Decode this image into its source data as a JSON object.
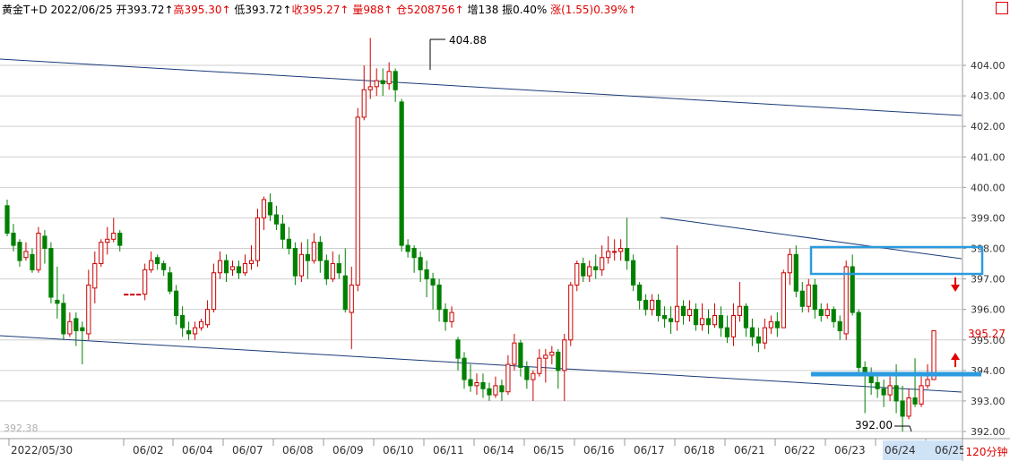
{
  "header": {
    "symbol": "黄金T+D",
    "date": "2022/06/25",
    "open": "开393.72↑",
    "high": "高395.30↑",
    "low": "低393.72↑",
    "close": "收395.27↑",
    "volume": "量988↑",
    "position": "仓5208756↑",
    "increase": "增138",
    "amplitude": "振0.40%",
    "change": "涨(1.55)0.39%↑"
  },
  "period_label": "120分钟",
  "colors": {
    "up": "#cc0000",
    "down": "#008000",
    "line": "#1a3a7a",
    "box": "#2b9be0",
    "axis_text": "#333333"
  },
  "chart_data": {
    "type": "candlestick",
    "ylim": [
      391.8,
      404.9
    ],
    "y_ticks": [
      "404.00",
      "403.00",
      "402.00",
      "401.00",
      "400.00",
      "399.00",
      "398.00",
      "397.00",
      "396.00",
      "395.00",
      "394.00",
      "393.00",
      "392.00"
    ],
    "y_tick_values": [
      404,
      403,
      402,
      401,
      400,
      399,
      398,
      397,
      396,
      395,
      394,
      393,
      392
    ],
    "x_labels": [
      "2022/05/30",
      "06/02",
      "06/04",
      "06/07",
      "06/08",
      "06/09",
      "06/10",
      "06/11",
      "06/14",
      "06/15",
      "06/16",
      "06/17",
      "06/18",
      "06/21",
      "06/22",
      "06/23",
      "06/24",
      "06/25"
    ],
    "annotations": {
      "max_label": "404.88",
      "min_label": "392.00",
      "current_price": "395.27",
      "faint_label": "392.38"
    },
    "candles": [
      [
        399.4,
        398.5,
        399.6,
        398.4
      ],
      [
        398.5,
        398.1,
        398.8,
        397.9
      ],
      [
        398.2,
        397.6,
        398.3,
        397.4
      ],
      [
        397.7,
        397.9,
        398.2,
        397.6
      ],
      [
        397.8,
        397.3,
        398.0,
        397.2
      ],
      [
        397.3,
        398.5,
        398.7,
        397.2
      ],
      [
        398.4,
        398.0,
        398.6,
        397.5
      ],
      [
        398.0,
        396.4,
        398.2,
        396.2
      ],
      [
        396.3,
        396.2,
        397.4,
        395.7
      ],
      [
        396.2,
        395.2,
        396.5,
        395.0
      ],
      [
        395.2,
        395.6,
        395.9,
        395.1
      ],
      [
        395.7,
        395.3,
        395.9,
        394.8
      ],
      [
        395.4,
        395.3,
        395.6,
        394.2
      ],
      [
        395.2,
        396.8,
        397.3,
        395.0
      ],
      [
        396.7,
        397.5,
        397.9,
        396.2
      ],
      [
        397.5,
        398.2,
        398.3,
        397.4
      ],
      [
        398.2,
        398.3,
        398.7,
        397.8
      ],
      [
        398.3,
        398.5,
        399.0,
        398.2
      ],
      [
        398.5,
        398.1,
        398.6,
        397.9
      ],
      [
        396.5,
        396.5,
        396.5,
        396.5
      ],
      [
        396.5,
        396.5,
        396.5,
        396.5
      ],
      [
        396.5,
        396.5,
        396.5,
        396.5
      ],
      [
        396.5,
        397.3,
        397.5,
        396.3
      ],
      [
        397.3,
        397.6,
        397.9,
        397.2
      ],
      [
        397.7,
        397.5,
        397.8,
        397.3
      ],
      [
        397.5,
        397.3,
        397.6,
        397.1
      ],
      [
        397.2,
        396.6,
        397.4,
        396.5
      ],
      [
        396.6,
        395.8,
        396.8,
        395.5
      ],
      [
        395.8,
        395.4,
        396.1,
        395.1
      ],
      [
        395.3,
        395.2,
        395.6,
        395.0
      ],
      [
        395.2,
        395.4,
        395.6,
        395.0
      ],
      [
        395.4,
        395.6,
        395.7,
        395.3
      ],
      [
        395.5,
        396.0,
        396.3,
        395.4
      ],
      [
        396.0,
        397.2,
        397.5,
        395.9
      ],
      [
        397.2,
        397.6,
        397.9,
        397.0
      ],
      [
        397.6,
        397.2,
        397.8,
        396.9
      ],
      [
        397.3,
        397.4,
        397.6,
        397.1
      ],
      [
        397.4,
        397.2,
        397.6,
        397.0
      ],
      [
        397.2,
        397.5,
        397.8,
        397.1
      ],
      [
        397.5,
        397.6,
        398.1,
        397.3
      ],
      [
        397.6,
        399.0,
        399.3,
        397.4
      ],
      [
        399.0,
        399.6,
        399.7,
        398.6
      ],
      [
        399.5,
        399.1,
        399.8,
        398.9
      ],
      [
        399.1,
        398.8,
        399.4,
        398.6
      ],
      [
        398.8,
        398.3,
        399.1,
        398.0
      ],
      [
        398.3,
        398.0,
        398.7,
        397.8
      ],
      [
        398.0,
        397.1,
        398.2,
        396.8
      ],
      [
        397.1,
        397.8,
        398.2,
        396.9
      ],
      [
        397.8,
        397.6,
        398.3,
        397.0
      ],
      [
        397.6,
        398.2,
        398.5,
        397.5
      ],
      [
        398.2,
        397.6,
        398.4,
        397.2
      ],
      [
        397.6,
        397.0,
        397.8,
        396.8
      ],
      [
        397.0,
        397.5,
        397.9,
        396.9
      ],
      [
        397.5,
        397.2,
        397.8,
        397.0
      ],
      [
        397.1,
        396.0,
        398.0,
        395.9
      ],
      [
        395.9,
        396.8,
        397.4,
        394.7
      ],
      [
        396.8,
        402.3,
        402.6,
        396.6
      ],
      [
        402.3,
        403.2,
        404.0,
        402.2
      ],
      [
        403.2,
        403.3,
        404.9,
        402.9
      ],
      [
        403.3,
        403.5,
        403.9,
        403.0
      ],
      [
        403.5,
        403.4,
        403.9,
        403.0
      ],
      [
        403.4,
        403.8,
        404.1,
        403.2
      ],
      [
        403.8,
        403.2,
        403.9,
        402.8
      ],
      [
        402.8,
        398.1,
        402.9,
        397.9
      ],
      [
        398.1,
        397.9,
        398.3,
        397.7
      ],
      [
        398.0,
        397.7,
        398.1,
        397.2
      ],
      [
        397.7,
        397.3,
        397.9,
        396.9
      ],
      [
        397.3,
        397.0,
        397.6,
        396.4
      ],
      [
        397.0,
        396.8,
        397.2,
        396.0
      ],
      [
        396.8,
        396.0,
        397.0,
        395.6
      ],
      [
        396.0,
        395.6,
        396.2,
        395.3
      ],
      [
        395.6,
        395.9,
        396.1,
        395.4
      ],
      [
        395.0,
        394.4,
        395.1,
        394.0
      ],
      [
        394.4,
        393.7,
        394.6,
        393.4
      ],
      [
        393.7,
        393.5,
        394.2,
        393.3
      ],
      [
        393.5,
        393.6,
        393.9,
        393.2
      ],
      [
        393.6,
        393.4,
        393.9,
        393.1
      ],
      [
        393.4,
        393.2,
        393.6,
        393.0
      ],
      [
        393.2,
        393.5,
        393.8,
        393.1
      ],
      [
        393.5,
        393.3,
        393.7,
        393.0
      ],
      [
        393.3,
        394.2,
        394.5,
        393.2
      ],
      [
        394.2,
        394.9,
        395.2,
        394.0
      ],
      [
        394.9,
        394.1,
        395.0,
        393.8
      ],
      [
        394.1,
        393.7,
        394.3,
        393.4
      ],
      [
        393.7,
        393.9,
        394.0,
        393.0
      ],
      [
        393.9,
        394.4,
        394.7,
        393.8
      ],
      [
        394.4,
        394.5,
        394.7,
        393.6
      ],
      [
        394.5,
        394.6,
        394.8,
        394.2
      ],
      [
        394.6,
        394.0,
        394.7,
        393.4
      ],
      [
        394.0,
        395.0,
        395.2,
        393.0
      ],
      [
        395.0,
        396.8,
        396.9,
        394.8
      ],
      [
        396.8,
        397.5,
        397.6,
        396.6
      ],
      [
        397.5,
        397.1,
        397.7,
        396.9
      ],
      [
        397.1,
        397.4,
        397.6,
        396.9
      ],
      [
        397.4,
        397.3,
        397.8,
        397.0
      ],
      [
        397.3,
        397.7,
        398.1,
        397.1
      ],
      [
        397.7,
        397.9,
        398.4,
        397.5
      ],
      [
        397.9,
        397.9,
        398.3,
        397.6
      ],
      [
        397.9,
        398.0,
        398.3,
        397.6
      ],
      [
        398.0,
        397.6,
        399.0,
        397.3
      ],
      [
        397.6,
        396.8,
        397.8,
        396.6
      ],
      [
        396.8,
        396.3,
        396.9,
        396.0
      ],
      [
        396.3,
        396.0,
        396.5,
        395.8
      ],
      [
        396.0,
        396.3,
        396.5,
        395.8
      ],
      [
        396.3,
        395.8,
        396.5,
        395.6
      ],
      [
        395.8,
        395.7,
        396.1,
        395.4
      ],
      [
        395.7,
        395.6,
        396.1,
        395.2
      ],
      [
        395.6,
        396.1,
        398.1,
        395.3
      ],
      [
        396.1,
        395.8,
        396.3,
        395.5
      ],
      [
        395.8,
        396.0,
        396.3,
        395.6
      ],
      [
        396.0,
        395.5,
        396.2,
        395.3
      ],
      [
        395.5,
        395.7,
        396.2,
        395.3
      ],
      [
        395.7,
        395.5,
        396.0,
        395.2
      ],
      [
        395.5,
        395.8,
        396.2,
        395.4
      ],
      [
        395.8,
        395.4,
        396.1,
        395.1
      ],
      [
        395.4,
        395.1,
        395.8,
        394.9
      ],
      [
        395.1,
        395.8,
        396.2,
        394.8
      ],
      [
        395.8,
        396.1,
        396.9,
        395.6
      ],
      [
        396.1,
        395.4,
        396.2,
        395.1
      ],
      [
        395.4,
        395.1,
        395.7,
        394.8
      ],
      [
        395.1,
        394.9,
        395.4,
        394.6
      ],
      [
        394.9,
        395.4,
        395.7,
        394.7
      ],
      [
        395.4,
        395.6,
        395.8,
        395.2
      ],
      [
        395.6,
        395.4,
        395.9,
        395.1
      ],
      [
        395.4,
        397.2,
        397.3,
        396.3
      ],
      [
        397.2,
        397.8,
        398.0,
        396.8
      ],
      [
        397.8,
        396.6,
        398.1,
        396.4
      ],
      [
        396.6,
        396.1,
        396.9,
        395.9
      ],
      [
        396.1,
        396.8,
        397.0,
        395.9
      ],
      [
        396.8,
        396.0,
        397.0,
        395.7
      ],
      [
        396.0,
        395.8,
        396.2,
        395.6
      ],
      [
        395.8,
        396.0,
        396.2,
        395.7
      ],
      [
        396.0,
        395.6,
        396.1,
        395.4
      ],
      [
        395.6,
        395.3,
        395.8,
        395.0
      ],
      [
        395.2,
        397.4,
        397.6,
        395.0
      ],
      [
        397.4,
        395.9,
        397.8,
        395.8
      ],
      [
        395.9,
        394.1,
        396.0,
        393.9
      ],
      [
        394.1,
        393.9,
        394.3,
        392.6
      ],
      [
        393.9,
        393.6,
        394.1,
        393.2
      ],
      [
        393.6,
        393.4,
        393.8,
        393.1
      ],
      [
        393.4,
        393.2,
        393.7,
        392.8
      ],
      [
        393.2,
        393.5,
        393.8,
        393.0
      ],
      [
        393.5,
        393.0,
        394.2,
        392.6
      ],
      [
        393.0,
        392.5,
        393.5,
        392.0
      ],
      [
        392.5,
        393.1,
        393.4,
        392.4
      ],
      [
        393.1,
        392.9,
        394.4,
        392.8
      ],
      [
        392.9,
        393.5,
        393.8,
        392.8
      ],
      [
        393.5,
        393.7,
        394.2,
        393.4
      ],
      [
        393.7,
        395.3,
        395.3,
        393.7
      ]
    ]
  }
}
